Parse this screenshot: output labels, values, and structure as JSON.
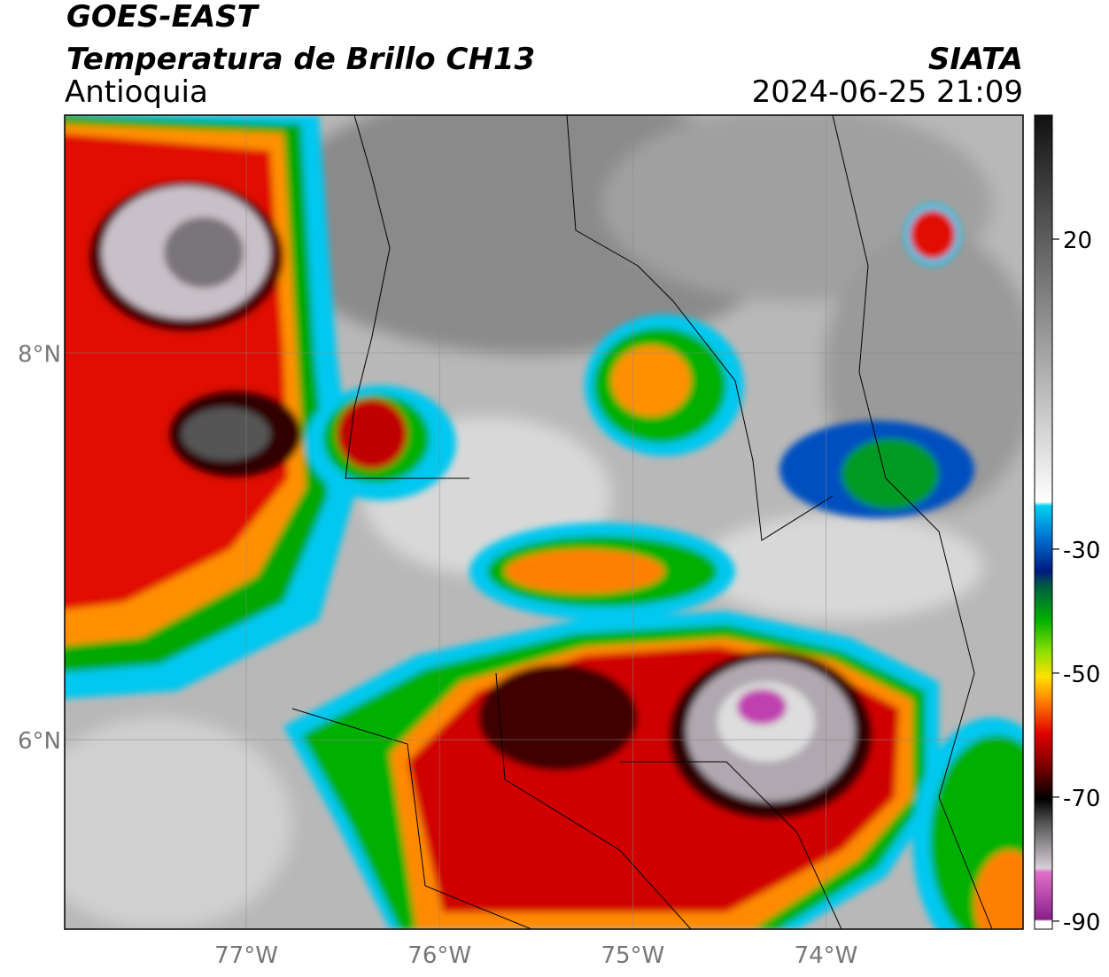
{
  "header": {
    "title": "GOES-EAST",
    "subtitle": "Temperatura de Brillo CH13",
    "region": "Antioquia",
    "source": "SIATA",
    "timestamp": "2024-06-25 21:09"
  },
  "map": {
    "lon_range": [
      -77.94,
      -72.98
    ],
    "lat_range": [
      5.02,
      9.23
    ],
    "lon_ticks": [
      {
        "value": -77,
        "label": "77°W"
      },
      {
        "value": -76,
        "label": "76°W"
      },
      {
        "value": -75,
        "label": "75°W"
      },
      {
        "value": -74,
        "label": "74°W"
      }
    ],
    "lat_ticks": [
      {
        "value": 8,
        "label": "8°N"
      },
      {
        "value": 6,
        "label": "6°N"
      }
    ]
  },
  "colorbar": {
    "range": [
      -91.3,
      40
    ],
    "ticks": [
      20,
      -30,
      -50,
      -70,
      -90
    ]
  }
}
